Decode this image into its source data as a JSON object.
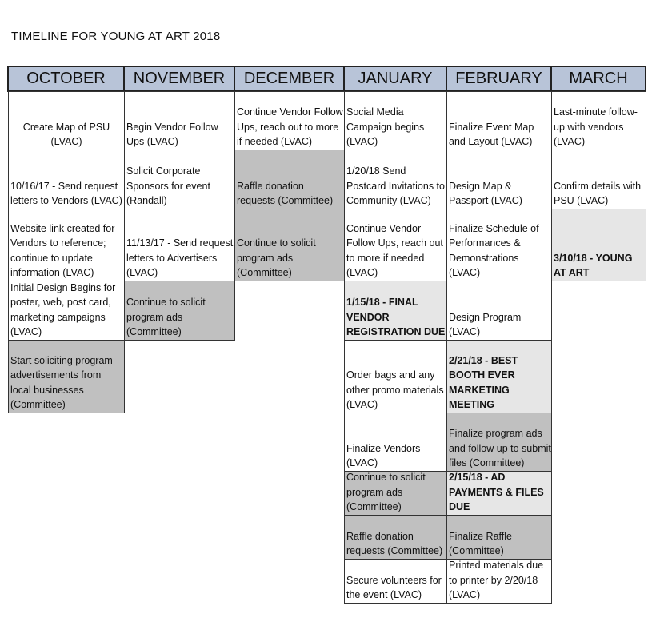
{
  "title": "TIMELINE FOR YOUNG AT ART 2018",
  "months": [
    "OCTOBER",
    "NOVEMBER",
    "DECEMBER",
    "JANUARY",
    "FEBRUARY",
    "MARCH"
  ],
  "colors": {
    "header": "#b8c4d8",
    "gray": "#c0c0c0",
    "light": "#e6e6e6"
  },
  "rows": [
    [
      {
        "text": "Create Map of PSU (LVAC)",
        "shade": "white",
        "center": true
      },
      {
        "text": "Begin Vendor Follow Ups (LVAC)",
        "shade": "white"
      },
      {
        "text": "Continue Vendor Follow Ups, reach out to more if needed (LVAC)",
        "shade": "white"
      },
      {
        "text": "Social Media Campaign begins (LVAC)",
        "shade": "white"
      },
      {
        "text": "Finalize Event Map and Layout (LVAC)",
        "shade": "white"
      },
      {
        "text": "Last-minute follow-up with vendors (LVAC)",
        "shade": "white"
      }
    ],
    [
      {
        "text": "10/16/17 - Send request letters to Vendors (LVAC)",
        "shade": "white"
      },
      {
        "text": "Solicit Corporate Sponsors for event (Randall)",
        "shade": "white"
      },
      {
        "text": "Raffle donation requests (Committee)",
        "shade": "gray"
      },
      {
        "text": "1/20/18 Send Postcard Invitations to Community (LVAC)",
        "shade": "white"
      },
      {
        "text": "Design Map & Passport (LVAC)",
        "shade": "white"
      },
      {
        "text": "Confirm details with PSU (LVAC)",
        "shade": "white"
      }
    ],
    [
      {
        "text": "Website link created for Vendors to reference; continue to update information (LVAC)",
        "shade": "white"
      },
      {
        "text": "11/13/17 - Send request letters to Advertisers (LVAC)",
        "shade": "white"
      },
      {
        "text": "Continue to solicit program ads (Committee)",
        "shade": "gray"
      },
      {
        "text": "Continue Vendor Follow Ups, reach out to more if needed (LVAC)",
        "shade": "white"
      },
      {
        "text": "Finalize Schedule of Performances & Demonstrations (LVAC)",
        "shade": "white"
      },
      {
        "text": "3/10/18 - YOUNG AT ART",
        "shade": "light",
        "bold": true
      }
    ],
    [
      {
        "text": "Initial Design Begins for poster, web, post card, marketing campaigns (LVAC)",
        "shade": "white"
      },
      {
        "text": "Continue to solicit program ads (Committee)",
        "shade": "gray"
      },
      null,
      {
        "text": "1/15/18 - FINAL VENDOR REGISTRATION DUE",
        "shade": "light",
        "bold": true
      },
      {
        "text": "Design Program (LVAC)",
        "shade": "white"
      },
      null
    ],
    [
      {
        "text": "Start soliciting program advertisements from local businesses (Committee)",
        "shade": "gray"
      },
      null,
      null,
      {
        "text": "Order bags and any other promo materials (LVAC)",
        "shade": "white"
      },
      {
        "text": "2/21/18 - BEST BOOTH EVER MARKETING MEETING",
        "shade": "light",
        "bold": true
      },
      null
    ],
    [
      null,
      null,
      null,
      {
        "text": "Finalize Vendors (LVAC)",
        "shade": "white"
      },
      {
        "text": "Finalize program ads and follow up to submit files (Committee)",
        "shade": "gray"
      },
      null
    ],
    [
      null,
      null,
      null,
      {
        "text": "Continue to solicit program ads (Committee)",
        "shade": "gray"
      },
      {
        "text": "2/15/18 - AD PAYMENTS & FILES DUE",
        "shade": "light",
        "bold": true
      },
      null
    ],
    [
      null,
      null,
      null,
      {
        "text": "Raffle donation requests (Committee)",
        "shade": "gray"
      },
      {
        "text": "Finalize Raffle (Committee)",
        "shade": "gray"
      },
      null
    ],
    [
      null,
      null,
      null,
      {
        "text": "Secure volunteers for the event (LVAC)",
        "shade": "white"
      },
      {
        "text": "Printed materials due to printer by 2/20/18 (LVAC)",
        "shade": "white"
      },
      null
    ]
  ]
}
